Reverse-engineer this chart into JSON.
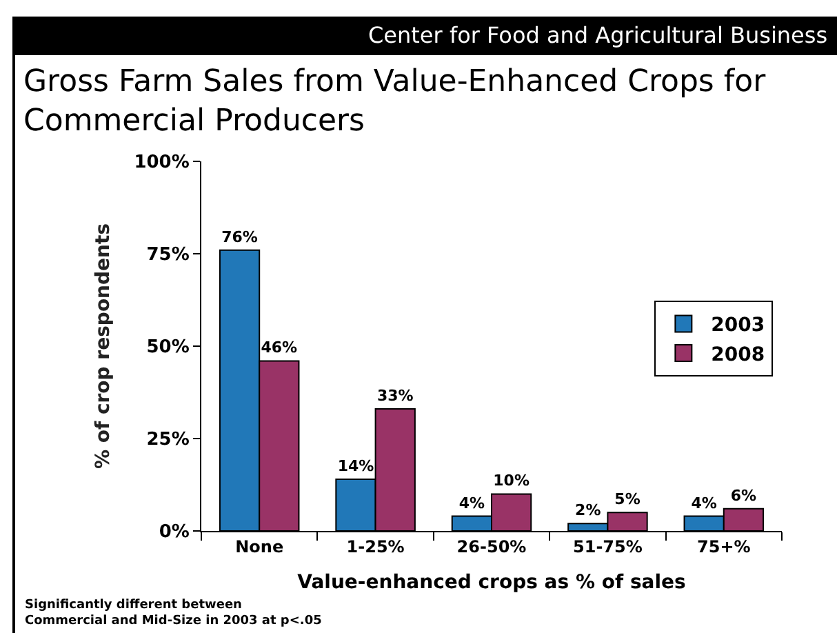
{
  "chart_data": {
    "type": "bar",
    "title": "Gross Farm Sales from Value-Enhanced Crops for\nCommercial Producers",
    "xlabel": "Value-enhanced crops as % of sales",
    "ylabel": "% of crop respondents",
    "categories": [
      "None",
      "1-25%",
      "26-50%",
      "51-75%",
      "75+%"
    ],
    "series": [
      {
        "name": "2003",
        "color": "#2178b8",
        "values": [
          76,
          14,
          4,
          2,
          4
        ],
        "value_labels": [
          "76%",
          "14%",
          "4%",
          "2%",
          "4%"
        ]
      },
      {
        "name": "2008",
        "color": "#993366",
        "values": [
          46,
          33,
          10,
          5,
          6
        ],
        "value_labels": [
          "46%",
          "33%",
          "10%",
          "5%",
          "6%"
        ]
      }
    ],
    "ylim": [
      0,
      100
    ],
    "yticks": [
      {
        "value": 0,
        "label": "0%"
      },
      {
        "value": 25,
        "label": "25%"
      },
      {
        "value": 50,
        "label": "50%"
      },
      {
        "value": 75,
        "label": "75%"
      },
      {
        "value": 100,
        "label": "100%"
      }
    ],
    "grid": false,
    "legend": "right",
    "annotations": [
      "Center for Food and Agricultural Business",
      "Significantly different between\nCommercial and Mid-Size in 2003 at p<.05"
    ]
  }
}
